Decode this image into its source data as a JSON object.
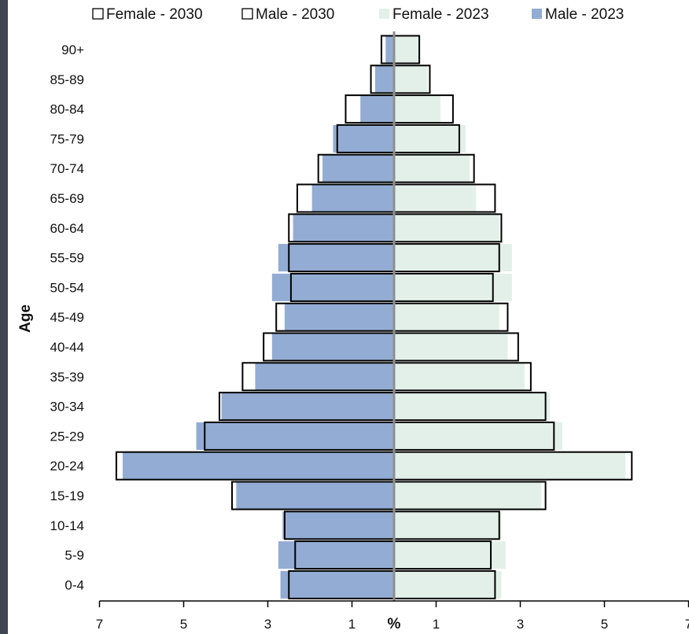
{
  "chart_data": {
    "type": "bar",
    "orientation": "horizontal",
    "subtype": "population-pyramid",
    "categories": [
      "90+",
      "85-89",
      "80-84",
      "75-79",
      "70-74",
      "65-69",
      "60-64",
      "55-59",
      "50-54",
      "45-49",
      "40-44",
      "35-39",
      "30-34",
      "25-29",
      "20-24",
      "15-19",
      "10-14",
      "5-9",
      "0-4"
    ],
    "series": [
      {
        "name": "Female - 2030",
        "side": "right",
        "style": "outline",
        "color": "#000000",
        "values": [
          0.6,
          0.85,
          1.4,
          1.55,
          1.9,
          2.4,
          2.55,
          2.5,
          2.35,
          2.7,
          2.95,
          3.25,
          3.6,
          3.8,
          5.65,
          3.6,
          2.5,
          2.3,
          2.4
        ]
      },
      {
        "name": "Male - 2030",
        "side": "left",
        "style": "outline",
        "color": "#000000",
        "values": [
          0.3,
          0.55,
          1.15,
          1.35,
          1.8,
          2.3,
          2.5,
          2.5,
          2.45,
          2.8,
          3.1,
          3.6,
          4.15,
          4.5,
          6.6,
          3.85,
          2.6,
          2.35,
          2.5
        ]
      },
      {
        "name": "Female - 2023",
        "side": "right",
        "style": "fill",
        "color": "#e3f0ea",
        "values": [
          0.6,
          0.8,
          1.1,
          1.7,
          1.8,
          1.95,
          2.5,
          2.8,
          2.8,
          2.5,
          2.7,
          3.1,
          3.7,
          4.0,
          5.5,
          3.5,
          2.55,
          2.65,
          2.55
        ]
      },
      {
        "name": "Male - 2023",
        "side": "left",
        "style": "fill",
        "color": "#93acd3",
        "values": [
          0.2,
          0.45,
          0.8,
          1.45,
          1.7,
          1.95,
          2.4,
          2.75,
          2.9,
          2.6,
          2.9,
          3.3,
          4.1,
          4.7,
          6.45,
          3.75,
          2.65,
          2.75,
          2.7
        ]
      }
    ],
    "xlabel": "%",
    "ylabel": "Age",
    "xticks": [
      "7",
      "5",
      "3",
      "1",
      "1",
      "3",
      "5",
      "7"
    ],
    "xlim": [
      -7,
      7
    ],
    "legend_position": "top",
    "grid": false
  }
}
